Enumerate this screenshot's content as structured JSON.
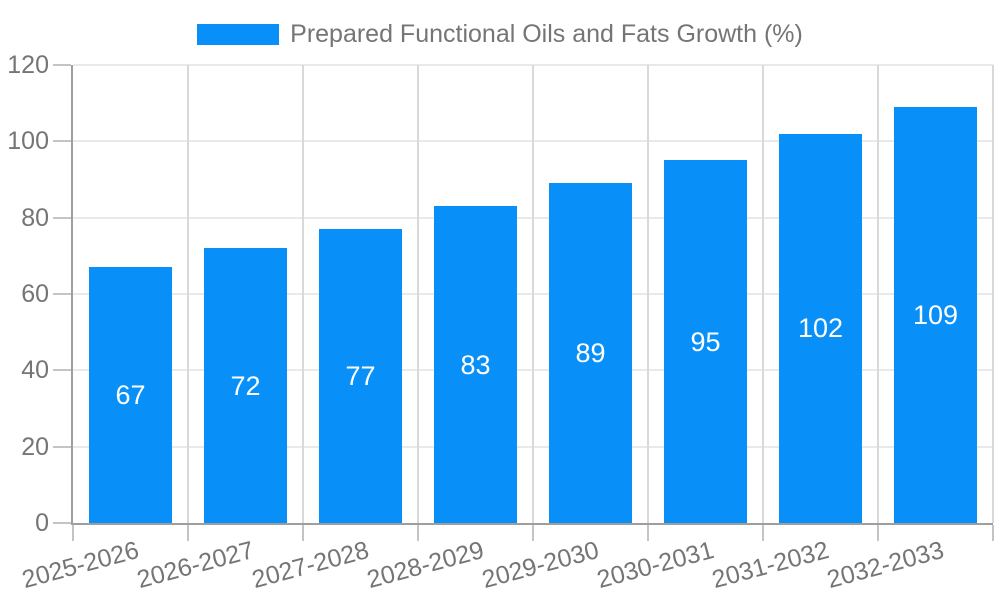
{
  "chart_data": {
    "type": "bar",
    "title": "",
    "legend": {
      "label": "Prepared Functional Oils and Fats Growth (%)",
      "position": "top-center"
    },
    "categories": [
      "2025-2026",
      "2026-2027",
      "2027-2028",
      "2028-2029",
      "2029-2030",
      "2030-2031",
      "2031-2032",
      "2032-2033"
    ],
    "series": [
      {
        "name": "Prepared Functional Oils and Fats Growth (%)",
        "values": [
          67,
          72,
          77,
          83,
          89,
          95,
          102,
          109
        ]
      }
    ],
    "value_labels_shown": true,
    "xlabel": "",
    "ylabel": "",
    "ylim": [
      0,
      120
    ],
    "yticks": [
      0,
      20,
      40,
      60,
      80,
      100,
      120
    ],
    "x_tick_rotation_deg": -15,
    "grid": {
      "horizontal": true,
      "vertical": true
    },
    "colors": {
      "bar": "#0890f8",
      "value_label": "#ffffff",
      "axis_text": "#757575",
      "axis_line": "#9e9e9e",
      "tick_mark": "#c4c4c4",
      "h_gridline": "#e9e9e9",
      "v_gridline": "#d9d9d9",
      "background": "#ffffff"
    }
  }
}
